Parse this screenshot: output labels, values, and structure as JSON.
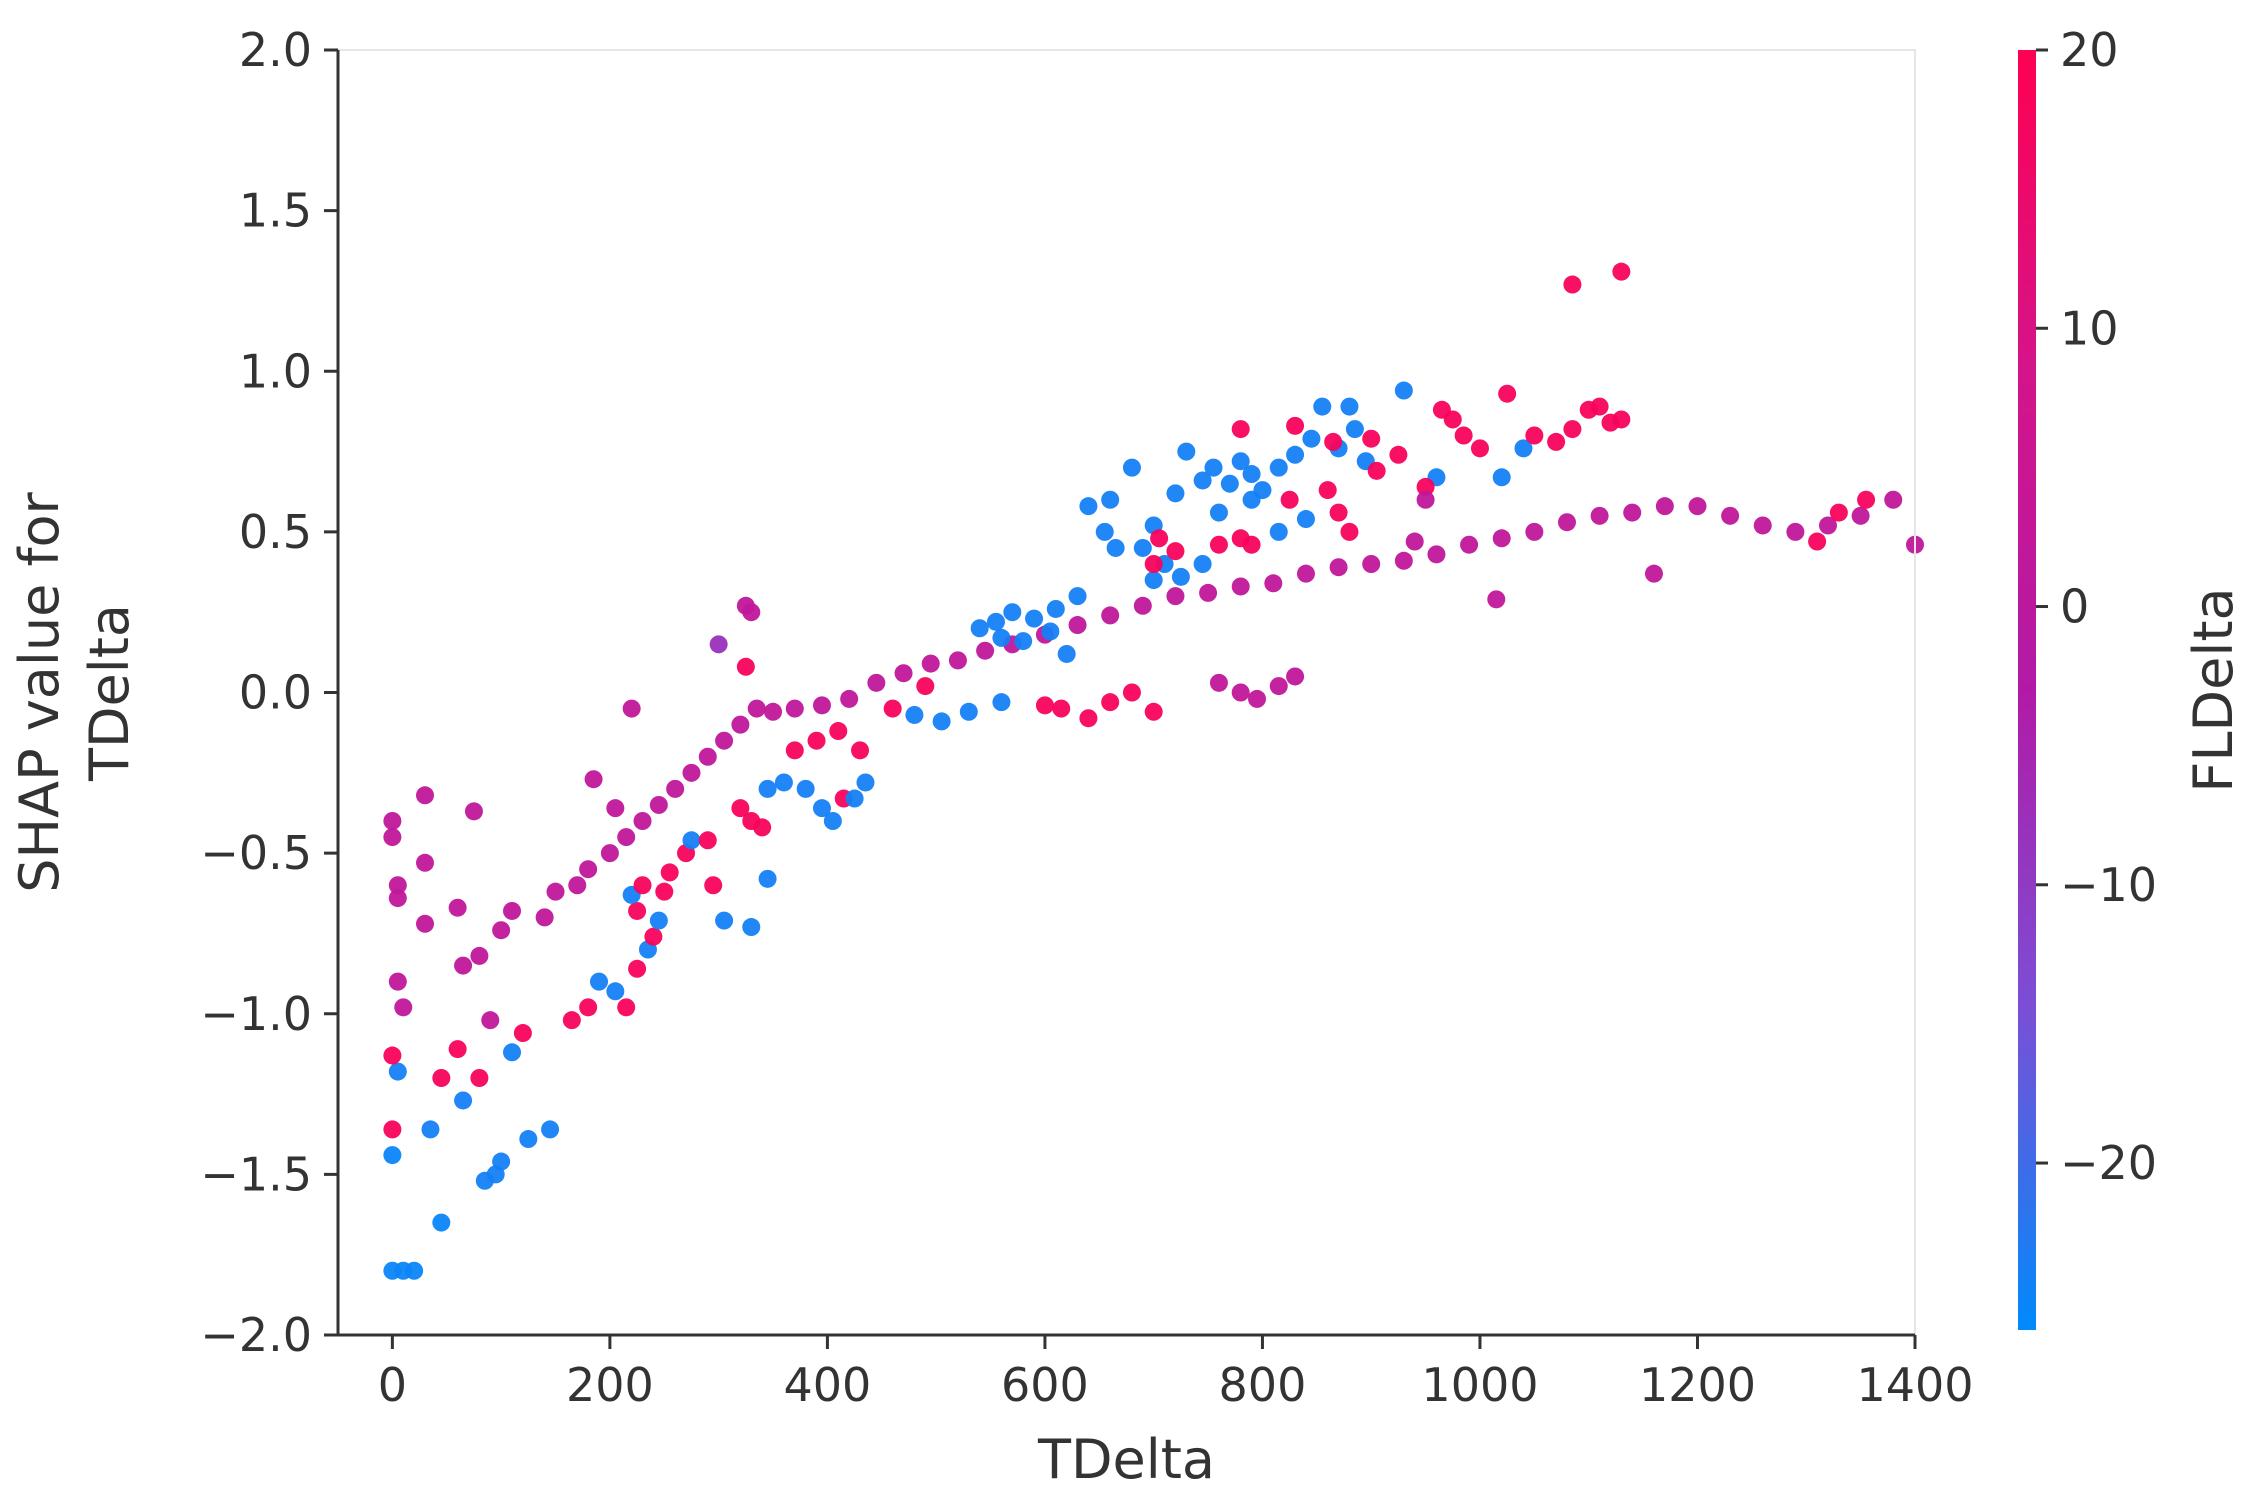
{
  "chart_data": {
    "type": "scatter",
    "title": "",
    "xlabel": "TDelta",
    "ylabel_lines": [
      "SHAP value for",
      "TDelta"
    ],
    "xlim": [
      -50,
      1400
    ],
    "ylim": [
      -2.0,
      2.0
    ],
    "xticks": [
      0,
      200,
      400,
      600,
      800,
      1000,
      1200,
      1400
    ],
    "xtick_labels": [
      "0",
      "200",
      "400",
      "600",
      "800",
      "1000",
      "1200",
      "1400"
    ],
    "yticks": [
      2.0,
      1.5,
      1.0,
      0.5,
      0.0,
      -0.5,
      -1.0,
      -1.5,
      -2.0
    ],
    "ytick_labels": [
      "2.0",
      "1.5",
      "1.0",
      "0.5",
      "0.0",
      "−0.5",
      "−1.0",
      "−1.5",
      "−2.0"
    ],
    "grid": false,
    "colorbar": {
      "label": "FLDelta",
      "range": [
        -26,
        20
      ],
      "ticks": [
        20,
        10,
        0,
        -10,
        -20
      ],
      "tick_labels": [
        "20",
        "10",
        "0",
        "−10",
        "−20"
      ],
      "colors": [
        "#008afb",
        "#7a4fd6",
        "#b21aa6",
        "#d4148a",
        "#ff0052"
      ]
    },
    "points": [
      {
        "x": 0,
        "y": -1.8,
        "c": -25
      },
      {
        "x": 10,
        "y": -1.8,
        "c": -25
      },
      {
        "x": 20,
        "y": -1.8,
        "c": -25
      },
      {
        "x": 45,
        "y": -1.65,
        "c": -25
      },
      {
        "x": 0,
        "y": -1.44,
        "c": -25
      },
      {
        "x": 35,
        "y": -1.36,
        "c": -24
      },
      {
        "x": 0,
        "y": -1.36,
        "c": 18
      },
      {
        "x": 5,
        "y": -1.18,
        "c": -24
      },
      {
        "x": 0,
        "y": -1.13,
        "c": 18
      },
      {
        "x": 60,
        "y": -1.11,
        "c": 18
      },
      {
        "x": 45,
        "y": -1.2,
        "c": 18
      },
      {
        "x": 65,
        "y": -1.27,
        "c": -24
      },
      {
        "x": 80,
        "y": -1.2,
        "c": 18
      },
      {
        "x": 85,
        "y": -1.52,
        "c": -24
      },
      {
        "x": 95,
        "y": -1.5,
        "c": -24
      },
      {
        "x": 100,
        "y": -1.46,
        "c": -24
      },
      {
        "x": 125,
        "y": -1.39,
        "c": -24
      },
      {
        "x": 145,
        "y": -1.36,
        "c": -24
      },
      {
        "x": 120,
        "y": -1.06,
        "c": 18
      },
      {
        "x": 110,
        "y": -1.12,
        "c": -24
      },
      {
        "x": 90,
        "y": -1.02,
        "c": 2
      },
      {
        "x": 165,
        "y": -1.02,
        "c": 18
      },
      {
        "x": 180,
        "y": -0.98,
        "c": 18
      },
      {
        "x": 190,
        "y": -0.9,
        "c": -24
      },
      {
        "x": 205,
        "y": -0.93,
        "c": -24
      },
      {
        "x": 215,
        "y": -0.98,
        "c": 18
      },
      {
        "x": 225,
        "y": -0.86,
        "c": 18
      },
      {
        "x": 235,
        "y": -0.8,
        "c": -24
      },
      {
        "x": 240,
        "y": -0.76,
        "c": 18
      },
      {
        "x": 245,
        "y": -0.71,
        "c": -24
      },
      {
        "x": 225,
        "y": -0.68,
        "c": 18
      },
      {
        "x": 220,
        "y": -0.63,
        "c": -24
      },
      {
        "x": 230,
        "y": -0.6,
        "c": 18
      },
      {
        "x": 250,
        "y": -0.62,
        "c": 18
      },
      {
        "x": 255,
        "y": -0.56,
        "c": 18
      },
      {
        "x": 270,
        "y": -0.5,
        "c": 18
      },
      {
        "x": 275,
        "y": -0.46,
        "c": -24
      },
      {
        "x": 295,
        "y": -0.6,
        "c": 18
      },
      {
        "x": 305,
        "y": -0.71,
        "c": -24
      },
      {
        "x": 330,
        "y": -0.73,
        "c": -24
      },
      {
        "x": 345,
        "y": -0.58,
        "c": -24
      },
      {
        "x": 290,
        "y": -0.46,
        "c": 18
      },
      {
        "x": 320,
        "y": -0.36,
        "c": 18
      },
      {
        "x": 330,
        "y": -0.4,
        "c": 18
      },
      {
        "x": 340,
        "y": -0.42,
        "c": 18
      },
      {
        "x": 345,
        "y": -0.3,
        "c": -24
      },
      {
        "x": 360,
        "y": -0.28,
        "c": -24
      },
      {
        "x": 380,
        "y": -0.3,
        "c": -24
      },
      {
        "x": 395,
        "y": -0.36,
        "c": -24
      },
      {
        "x": 405,
        "y": -0.4,
        "c": -24
      },
      {
        "x": 415,
        "y": -0.33,
        "c": 18
      },
      {
        "x": 425,
        "y": -0.33,
        "c": -24
      },
      {
        "x": 435,
        "y": -0.28,
        "c": -24
      },
      {
        "x": 370,
        "y": -0.18,
        "c": 18
      },
      {
        "x": 390,
        "y": -0.15,
        "c": 18
      },
      {
        "x": 410,
        "y": -0.12,
        "c": 18
      },
      {
        "x": 430,
        "y": -0.18,
        "c": 18
      },
      {
        "x": 325,
        "y": 0.27,
        "c": 2
      },
      {
        "x": 330,
        "y": 0.25,
        "c": 2
      },
      {
        "x": 300,
        "y": 0.15,
        "c": -8
      },
      {
        "x": 325,
        "y": 0.08,
        "c": 18
      },
      {
        "x": 220,
        "y": -0.05,
        "c": 2
      },
      {
        "x": 185,
        "y": -0.27,
        "c": 2
      },
      {
        "x": 205,
        "y": -0.36,
        "c": 2
      },
      {
        "x": 75,
        "y": -0.37,
        "c": 2
      },
      {
        "x": 30,
        "y": -0.32,
        "c": 2
      },
      {
        "x": 30,
        "y": -0.53,
        "c": 2
      },
      {
        "x": 0,
        "y": -0.4,
        "c": 2
      },
      {
        "x": 0,
        "y": -0.45,
        "c": 2
      },
      {
        "x": 5,
        "y": -0.6,
        "c": 2
      },
      {
        "x": 5,
        "y": -0.64,
        "c": 2
      },
      {
        "x": 5,
        "y": -0.9,
        "c": 2
      },
      {
        "x": 10,
        "y": -0.98,
        "c": 2
      },
      {
        "x": 30,
        "y": -0.72,
        "c": 2
      },
      {
        "x": 60,
        "y": -0.67,
        "c": 2
      },
      {
        "x": 65,
        "y": -0.85,
        "c": 2
      },
      {
        "x": 80,
        "y": -0.82,
        "c": 2
      },
      {
        "x": 100,
        "y": -0.74,
        "c": 2
      },
      {
        "x": 110,
        "y": -0.68,
        "c": 2
      },
      {
        "x": 140,
        "y": -0.7,
        "c": 2
      },
      {
        "x": 150,
        "y": -0.62,
        "c": 2
      },
      {
        "x": 170,
        "y": -0.6,
        "c": 2
      },
      {
        "x": 180,
        "y": -0.55,
        "c": 2
      },
      {
        "x": 200,
        "y": -0.5,
        "c": 2
      },
      {
        "x": 215,
        "y": -0.45,
        "c": 2
      },
      {
        "x": 230,
        "y": -0.4,
        "c": 2
      },
      {
        "x": 245,
        "y": -0.35,
        "c": 2
      },
      {
        "x": 260,
        "y": -0.3,
        "c": 2
      },
      {
        "x": 275,
        "y": -0.25,
        "c": 2
      },
      {
        "x": 290,
        "y": -0.2,
        "c": 2
      },
      {
        "x": 305,
        "y": -0.15,
        "c": 2
      },
      {
        "x": 320,
        "y": -0.1,
        "c": 2
      },
      {
        "x": 335,
        "y": -0.05,
        "c": 2
      },
      {
        "x": 350,
        "y": -0.06,
        "c": 2
      },
      {
        "x": 370,
        "y": -0.05,
        "c": 2
      },
      {
        "x": 395,
        "y": -0.04,
        "c": 2
      },
      {
        "x": 420,
        "y": -0.02,
        "c": 2
      },
      {
        "x": 445,
        "y": 0.03,
        "c": 2
      },
      {
        "x": 470,
        "y": 0.06,
        "c": 2
      },
      {
        "x": 495,
        "y": 0.09,
        "c": 2
      },
      {
        "x": 520,
        "y": 0.1,
        "c": 2
      },
      {
        "x": 545,
        "y": 0.13,
        "c": 2
      },
      {
        "x": 570,
        "y": 0.15,
        "c": 2
      },
      {
        "x": 600,
        "y": 0.18,
        "c": 2
      },
      {
        "x": 630,
        "y": 0.21,
        "c": 2
      },
      {
        "x": 660,
        "y": 0.24,
        "c": 2
      },
      {
        "x": 690,
        "y": 0.27,
        "c": 2
      },
      {
        "x": 720,
        "y": 0.3,
        "c": 2
      },
      {
        "x": 750,
        "y": 0.31,
        "c": 2
      },
      {
        "x": 780,
        "y": 0.33,
        "c": 2
      },
      {
        "x": 810,
        "y": 0.34,
        "c": 2
      },
      {
        "x": 840,
        "y": 0.37,
        "c": 2
      },
      {
        "x": 870,
        "y": 0.39,
        "c": 2
      },
      {
        "x": 900,
        "y": 0.4,
        "c": 2
      },
      {
        "x": 930,
        "y": 0.41,
        "c": 2
      },
      {
        "x": 960,
        "y": 0.43,
        "c": 2
      },
      {
        "x": 990,
        "y": 0.46,
        "c": 2
      },
      {
        "x": 1020,
        "y": 0.48,
        "c": 2
      },
      {
        "x": 1050,
        "y": 0.5,
        "c": 2
      },
      {
        "x": 1080,
        "y": 0.53,
        "c": 2
      },
      {
        "x": 1110,
        "y": 0.55,
        "c": 2
      },
      {
        "x": 1140,
        "y": 0.56,
        "c": 2
      },
      {
        "x": 1170,
        "y": 0.58,
        "c": 2
      },
      {
        "x": 1200,
        "y": 0.58,
        "c": 2
      },
      {
        "x": 1230,
        "y": 0.55,
        "c": 2
      },
      {
        "x": 1260,
        "y": 0.52,
        "c": 2
      },
      {
        "x": 1290,
        "y": 0.5,
        "c": 2
      },
      {
        "x": 1320,
        "y": 0.52,
        "c": 2
      },
      {
        "x": 1350,
        "y": 0.55,
        "c": 2
      },
      {
        "x": 1380,
        "y": 0.6,
        "c": 2
      },
      {
        "x": 1400,
        "y": 0.46,
        "c": 2
      },
      {
        "x": 1160,
        "y": 0.37,
        "c": 2
      },
      {
        "x": 1015,
        "y": 0.29,
        "c": 2
      },
      {
        "x": 1330,
        "y": 0.56,
        "c": 18
      },
      {
        "x": 1310,
        "y": 0.47,
        "c": 18
      },
      {
        "x": 1355,
        "y": 0.6,
        "c": 18
      },
      {
        "x": 660,
        "y": 0.6,
        "c": -24
      },
      {
        "x": 640,
        "y": 0.58,
        "c": -24
      },
      {
        "x": 655,
        "y": 0.5,
        "c": -24
      },
      {
        "x": 665,
        "y": 0.45,
        "c": -24
      },
      {
        "x": 680,
        "y": 0.7,
        "c": -24
      },
      {
        "x": 700,
        "y": 0.52,
        "c": -24
      },
      {
        "x": 690,
        "y": 0.45,
        "c": -24
      },
      {
        "x": 710,
        "y": 0.4,
        "c": -24
      },
      {
        "x": 720,
        "y": 0.62,
        "c": -24
      },
      {
        "x": 730,
        "y": 0.75,
        "c": -24
      },
      {
        "x": 745,
        "y": 0.66,
        "c": -24
      },
      {
        "x": 755,
        "y": 0.7,
        "c": -24
      },
      {
        "x": 770,
        "y": 0.65,
        "c": -24
      },
      {
        "x": 780,
        "y": 0.72,
        "c": -24
      },
      {
        "x": 790,
        "y": 0.68,
        "c": -24
      },
      {
        "x": 800,
        "y": 0.63,
        "c": -24
      },
      {
        "x": 815,
        "y": 0.7,
        "c": -24
      },
      {
        "x": 830,
        "y": 0.74,
        "c": -24
      },
      {
        "x": 845,
        "y": 0.79,
        "c": -24
      },
      {
        "x": 855,
        "y": 0.89,
        "c": -24
      },
      {
        "x": 880,
        "y": 0.89,
        "c": -24
      },
      {
        "x": 885,
        "y": 0.82,
        "c": -24
      },
      {
        "x": 895,
        "y": 0.72,
        "c": -24
      },
      {
        "x": 930,
        "y": 0.94,
        "c": -24
      },
      {
        "x": 870,
        "y": 0.76,
        "c": -24
      },
      {
        "x": 840,
        "y": 0.54,
        "c": -24
      },
      {
        "x": 815,
        "y": 0.5,
        "c": -24
      },
      {
        "x": 790,
        "y": 0.6,
        "c": -24
      },
      {
        "x": 760,
        "y": 0.56,
        "c": -24
      },
      {
        "x": 745,
        "y": 0.4,
        "c": -24
      },
      {
        "x": 725,
        "y": 0.36,
        "c": -24
      },
      {
        "x": 700,
        "y": 0.35,
        "c": -24
      },
      {
        "x": 630,
        "y": 0.3,
        "c": -24
      },
      {
        "x": 610,
        "y": 0.26,
        "c": -24
      },
      {
        "x": 590,
        "y": 0.23,
        "c": -24
      },
      {
        "x": 570,
        "y": 0.25,
        "c": -24
      },
      {
        "x": 555,
        "y": 0.22,
        "c": -24
      },
      {
        "x": 540,
        "y": 0.2,
        "c": -24
      },
      {
        "x": 560,
        "y": 0.17,
        "c": -24
      },
      {
        "x": 580,
        "y": 0.16,
        "c": -24
      },
      {
        "x": 605,
        "y": 0.19,
        "c": -24
      },
      {
        "x": 620,
        "y": 0.12,
        "c": -24
      },
      {
        "x": 1020,
        "y": 0.67,
        "c": -24
      },
      {
        "x": 1040,
        "y": 0.76,
        "c": -24
      },
      {
        "x": 960,
        "y": 0.67,
        "c": -24
      },
      {
        "x": 780,
        "y": 0.82,
        "c": 18
      },
      {
        "x": 830,
        "y": 0.83,
        "c": 18
      },
      {
        "x": 865,
        "y": 0.78,
        "c": 18
      },
      {
        "x": 900,
        "y": 0.79,
        "c": 18
      },
      {
        "x": 925,
        "y": 0.74,
        "c": 18
      },
      {
        "x": 905,
        "y": 0.69,
        "c": 18
      },
      {
        "x": 950,
        "y": 0.64,
        "c": 18
      },
      {
        "x": 860,
        "y": 0.63,
        "c": 18
      },
      {
        "x": 825,
        "y": 0.6,
        "c": 18
      },
      {
        "x": 870,
        "y": 0.56,
        "c": 18
      },
      {
        "x": 880,
        "y": 0.5,
        "c": 18
      },
      {
        "x": 780,
        "y": 0.48,
        "c": 18
      },
      {
        "x": 790,
        "y": 0.46,
        "c": 18
      },
      {
        "x": 760,
        "y": 0.46,
        "c": 18
      },
      {
        "x": 720,
        "y": 0.44,
        "c": 18
      },
      {
        "x": 705,
        "y": 0.48,
        "c": 18
      },
      {
        "x": 700,
        "y": 0.4,
        "c": 18
      },
      {
        "x": 965,
        "y": 0.88,
        "c": 18
      },
      {
        "x": 975,
        "y": 0.85,
        "c": 18
      },
      {
        "x": 985,
        "y": 0.8,
        "c": 18
      },
      {
        "x": 1000,
        "y": 0.76,
        "c": 18
      },
      {
        "x": 1025,
        "y": 0.93,
        "c": 18
      },
      {
        "x": 1050,
        "y": 0.8,
        "c": 18
      },
      {
        "x": 1070,
        "y": 0.78,
        "c": 18
      },
      {
        "x": 1085,
        "y": 0.82,
        "c": 18
      },
      {
        "x": 1100,
        "y": 0.88,
        "c": 18
      },
      {
        "x": 1110,
        "y": 0.89,
        "c": 18
      },
      {
        "x": 1120,
        "y": 0.84,
        "c": 18
      },
      {
        "x": 1130,
        "y": 0.85,
        "c": 18
      },
      {
        "x": 1085,
        "y": 1.27,
        "c": 18
      },
      {
        "x": 1130,
        "y": 1.31,
        "c": 18
      },
      {
        "x": 940,
        "y": 0.47,
        "c": 2
      },
      {
        "x": 950,
        "y": 0.6,
        "c": 2
      },
      {
        "x": 760,
        "y": 0.03,
        "c": 2
      },
      {
        "x": 780,
        "y": 0.0,
        "c": 2
      },
      {
        "x": 795,
        "y": -0.02,
        "c": 2
      },
      {
        "x": 815,
        "y": 0.02,
        "c": 2
      },
      {
        "x": 830,
        "y": 0.05,
        "c": 2
      },
      {
        "x": 600,
        "y": -0.04,
        "c": 18
      },
      {
        "x": 615,
        "y": -0.05,
        "c": 18
      },
      {
        "x": 640,
        "y": -0.08,
        "c": 18
      },
      {
        "x": 660,
        "y": -0.03,
        "c": 18
      },
      {
        "x": 680,
        "y": 0.0,
        "c": 18
      },
      {
        "x": 700,
        "y": -0.06,
        "c": 18
      },
      {
        "x": 560,
        "y": -0.03,
        "c": -24
      },
      {
        "x": 530,
        "y": -0.06,
        "c": -24
      },
      {
        "x": 505,
        "y": -0.09,
        "c": -24
      },
      {
        "x": 480,
        "y": -0.07,
        "c": -24
      },
      {
        "x": 460,
        "y": -0.05,
        "c": 18
      },
      {
        "x": 490,
        "y": 0.02,
        "c": 18
      }
    ]
  }
}
